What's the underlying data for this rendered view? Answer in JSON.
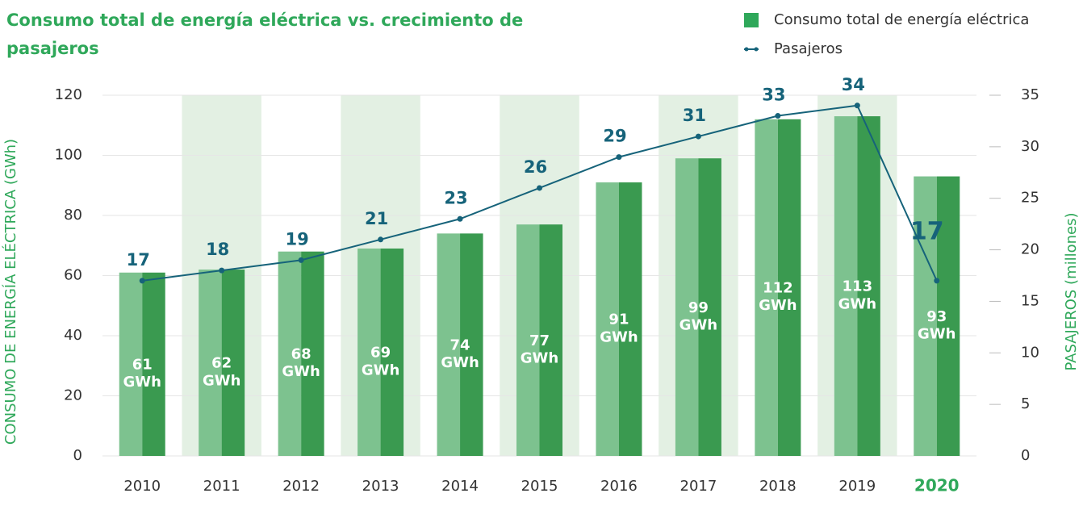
{
  "chart_data": {
    "type": "bar_line",
    "title": "Consumo total de energía eléctrica vs. crecimiento de pasajeros",
    "y_label": "CONSUMO DE ENERGÍA ELÉCTRICA (GWh)",
    "y2_label": "PASAJEROS (millones)",
    "categories": [
      "2010",
      "2011",
      "2012",
      "2013",
      "2014",
      "2015",
      "2016",
      "2017",
      "2018",
      "2019",
      "2020"
    ],
    "series": [
      {
        "name": "Consumo total de energía eléctrica",
        "type": "bar",
        "color": "#3a9a50",
        "light_color": "#7dc28f",
        "values": [
          61,
          62,
          68,
          69,
          74,
          77,
          91,
          99,
          112,
          113,
          93
        ],
        "value_labels": [
          "61 GWh",
          "62 GWh",
          "68 GWh",
          "69 GWh",
          "74 GWh",
          "77 GWh",
          "91 GWh",
          "99 GWh",
          "112 GWh",
          "113 GWh",
          "93 GWh"
        ]
      },
      {
        "name": "Pasajeros",
        "type": "line",
        "axis": "y2",
        "color": "#16637a",
        "values": [
          17,
          18,
          19,
          21,
          23,
          26,
          29,
          31,
          33,
          34,
          17
        ]
      }
    ],
    "ylim": [
      0,
      120
    ],
    "yticks": [
      0,
      20,
      40,
      60,
      80,
      100,
      120
    ],
    "y2lim": [
      0,
      35
    ],
    "y2ticks": [
      0,
      5,
      10,
      15,
      20,
      25,
      30,
      35
    ],
    "legend": "top-right"
  }
}
